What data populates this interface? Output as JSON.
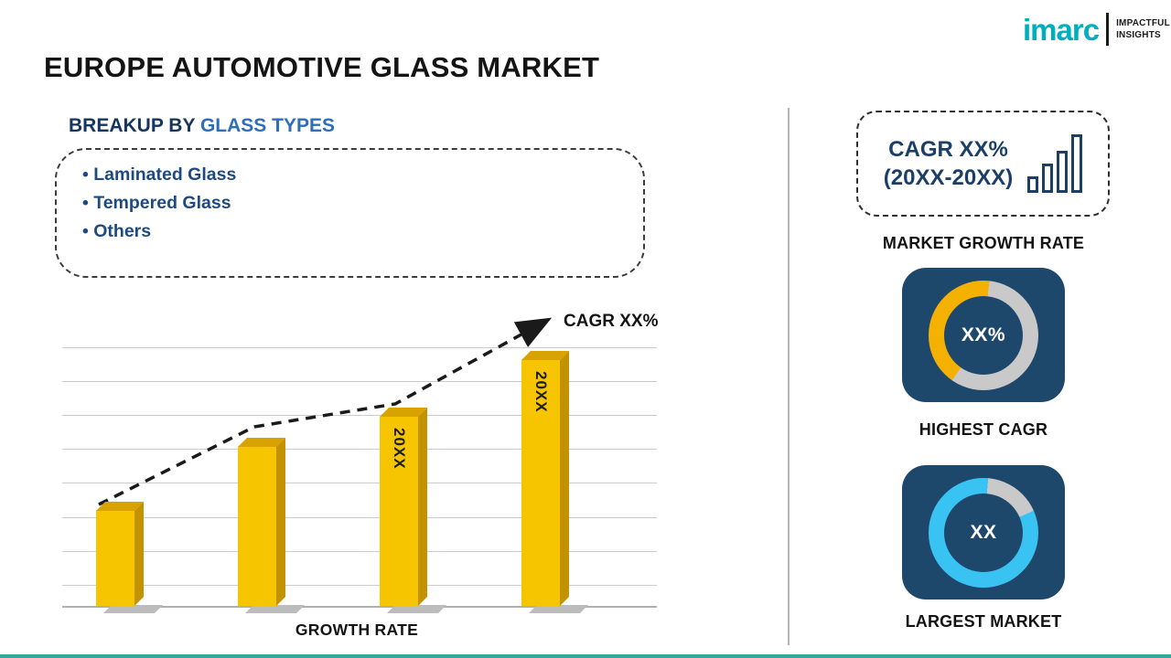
{
  "page": {
    "title": "EUROPE AUTOMOTIVE GLASS MARKET"
  },
  "logo": {
    "brand": "imarc",
    "tagline_line1": "IMPACTFUL",
    "tagline_line2": "INSIGHTS"
  },
  "breakup": {
    "heading_prefix": "BREAKUP BY ",
    "heading_highlight": "GLASS TYPES",
    "items": [
      "Laminated Glass",
      "Tempered Glass",
      "Others"
    ]
  },
  "chart_data": [
    {
      "type": "bar",
      "title": "",
      "categories": [
        "",
        "",
        "20XX",
        "20XX"
      ],
      "values": [
        25,
        42,
        50,
        65
      ],
      "xlabel": "GROWTH RATE",
      "ylabel": "",
      "ylim": [
        0,
        70
      ],
      "grid": true,
      "trend_label": "CAGR XX%",
      "bar_color": "#f6c500"
    },
    {
      "type": "donut",
      "label": "HIGHEST CAGR",
      "center_text": "XX%",
      "segments": [
        {
          "name": "highlight",
          "value": 42,
          "color": "#f4b100"
        },
        {
          "name": "remainder",
          "value": 58,
          "color": "#c9c9c9"
        }
      ]
    },
    {
      "type": "donut",
      "label": "LARGEST MARKET",
      "center_text": "XX",
      "segments": [
        {
          "name": "highlight",
          "value": 83,
          "color": "#39c3f2"
        },
        {
          "name": "remainder",
          "value": 17,
          "color": "#c9c9c9"
        }
      ]
    }
  ],
  "sidebar": {
    "growth_card": {
      "line1": "CAGR XX%",
      "line2": "(20XX-20XX)"
    },
    "market_growth_label": "MARKET GROWTH RATE"
  },
  "colors": {
    "navy": "#1e476c",
    "heading_navy": "#16355e",
    "heading_blue": "#2d6db9",
    "list_blue": "#1d4a80",
    "gold": "#f4b100",
    "cyan": "#39c3f2",
    "gray": "#c9c9c9",
    "bar_yellow": "#f6c500",
    "brand_teal": "#00afbe",
    "bottom_accent": "#33a79b"
  }
}
